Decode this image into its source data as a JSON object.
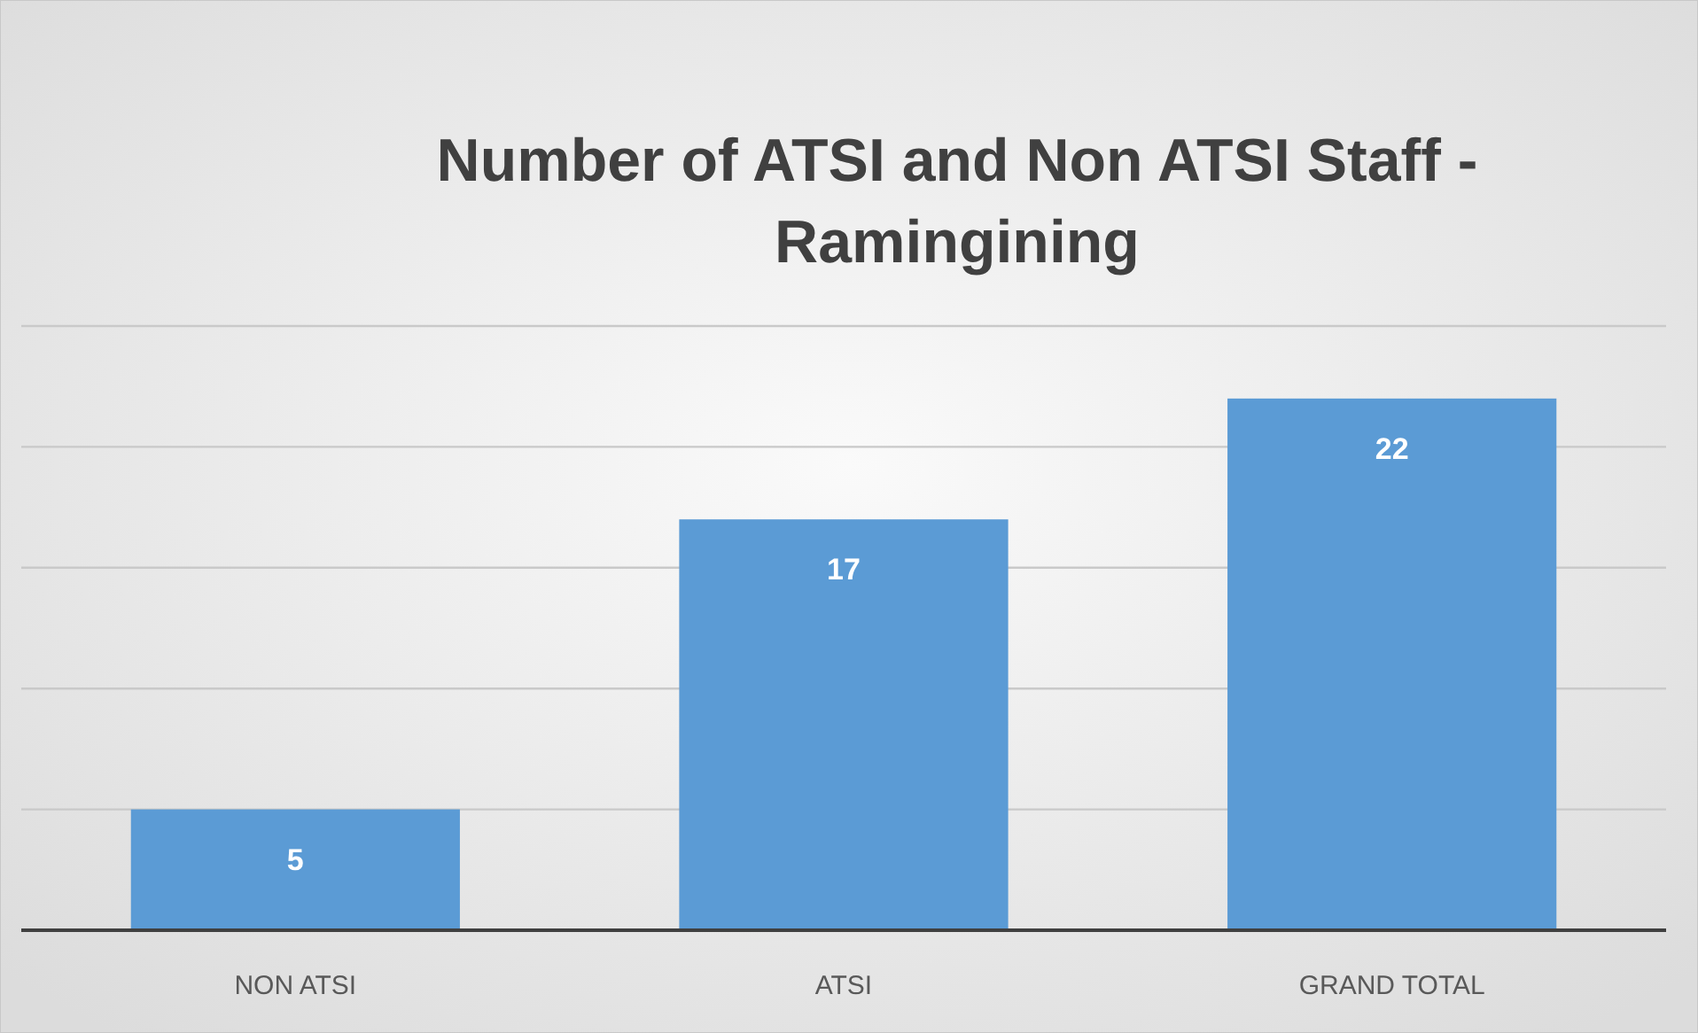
{
  "chart_data": {
    "type": "bar",
    "title": "Number of ATSI and Non ATSI Staff - Ramingining",
    "categories": [
      "NON ATSI",
      "ATSI",
      "GRAND TOTAL"
    ],
    "values": [
      5,
      17,
      22
    ],
    "color": "#5b9bd5",
    "ylim": [
      0,
      25
    ],
    "yticks": [
      {
        "value": 0,
        "label": null
      },
      {
        "value": 5,
        "label": null
      },
      {
        "value": 10,
        "label": null
      },
      {
        "value": 15,
        "label": null
      },
      {
        "value": 20,
        "label": null
      },
      {
        "value": 25,
        "label": null
      }
    ],
    "grid": "y",
    "tick_labels": "x",
    "data_labels": true
  }
}
